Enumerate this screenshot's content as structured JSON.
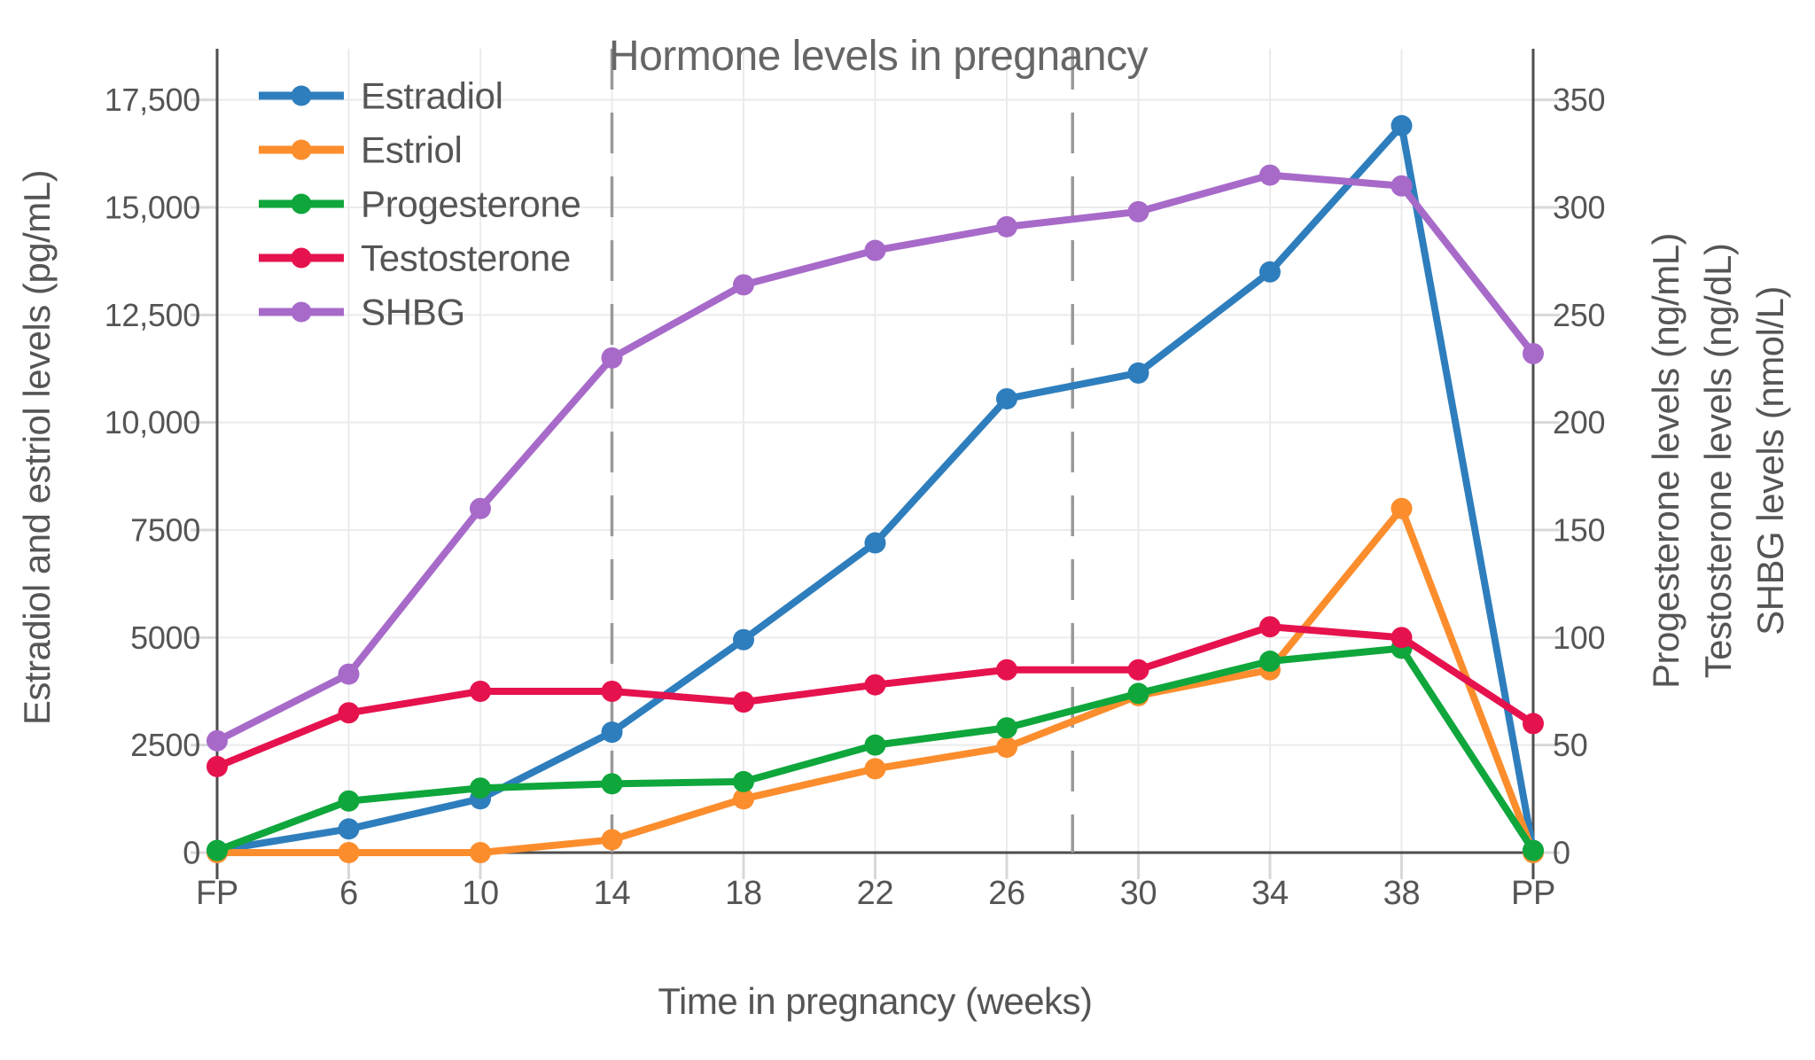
{
  "title": "Hormone levels in pregnancy",
  "colors": {
    "estradiol": "#2e7ebd",
    "estriol": "#fb8d2d",
    "progesterone": "#0fa63c",
    "testosterone": "#e5124e",
    "shbg": "#a76ac9",
    "grid": "#ebebeb",
    "axis_line": "#4d4d4d",
    "tick_mark": "#d8d8d8",
    "dashed_line": "#999999",
    "tick_text": "#555555",
    "legend_text": "#555555",
    "title_text": "#666666"
  },
  "chart_data": {
    "type": "line",
    "title": "Hormone levels in pregnancy",
    "xlabel": "Time in pregnancy (weeks)",
    "ylabel_left": "Estradiol and estriol levels (pg/mL)",
    "ylabels_right": [
      "Progesterone levels (ng/mL)",
      "Testosterone levels (ng/dL)",
      "SHBG levels (nmol/L)"
    ],
    "categories": [
      "FP",
      "6",
      "10",
      "14",
      "18",
      "22",
      "26",
      "30",
      "34",
      "38",
      "PP"
    ],
    "series": [
      {
        "name": "Estradiol",
        "axis": "left",
        "unit": "pg/mL",
        "color_key": "estradiol",
        "values": [
          50,
          550,
          1250,
          2800,
          4950,
          7200,
          10550,
          11150,
          13500,
          16900,
          50
        ]
      },
      {
        "name": "Estriol",
        "axis": "left",
        "unit": "pg/mL",
        "color_key": "estriol",
        "values": [
          0,
          0,
          0,
          300,
          1250,
          1950,
          2450,
          3650,
          4250,
          8000,
          0
        ]
      },
      {
        "name": "Progesterone",
        "axis": "right",
        "unit": "ng/mL",
        "color_key": "progesterone",
        "values": [
          1,
          24,
          30,
          32,
          33,
          50,
          58,
          74,
          89,
          95,
          1
        ]
      },
      {
        "name": "Testosterone",
        "axis": "right",
        "unit": "ng/dL",
        "color_key": "testosterone",
        "values": [
          40,
          65,
          75,
          75,
          70,
          78,
          85,
          85,
          105,
          100,
          60
        ]
      },
      {
        "name": "SHBG",
        "axis": "right",
        "unit": "nmol/L",
        "color_key": "shbg",
        "values": [
          52,
          83,
          160,
          230,
          264,
          280,
          291,
          298,
          315,
          310,
          232
        ]
      }
    ],
    "left_axis": {
      "ticks": [
        0,
        2500,
        5000,
        7500,
        10000,
        12500,
        15000,
        17500
      ],
      "tick_labels": [
        "0",
        "2500",
        "5000",
        "7500",
        "10,000",
        "12,500",
        "15,000",
        "17,500"
      ],
      "range": [
        0,
        18700
      ]
    },
    "right_axis": {
      "ticks": [
        0,
        50,
        100,
        150,
        200,
        250,
        300,
        350
      ],
      "tick_labels": [
        "0",
        "50",
        "100",
        "150",
        "200",
        "250",
        "300",
        "350"
      ],
      "range": [
        0,
        374
      ]
    },
    "dashed_vlines_weeks": [
      14,
      28
    ],
    "grid": true,
    "legend_position": "top-left"
  }
}
